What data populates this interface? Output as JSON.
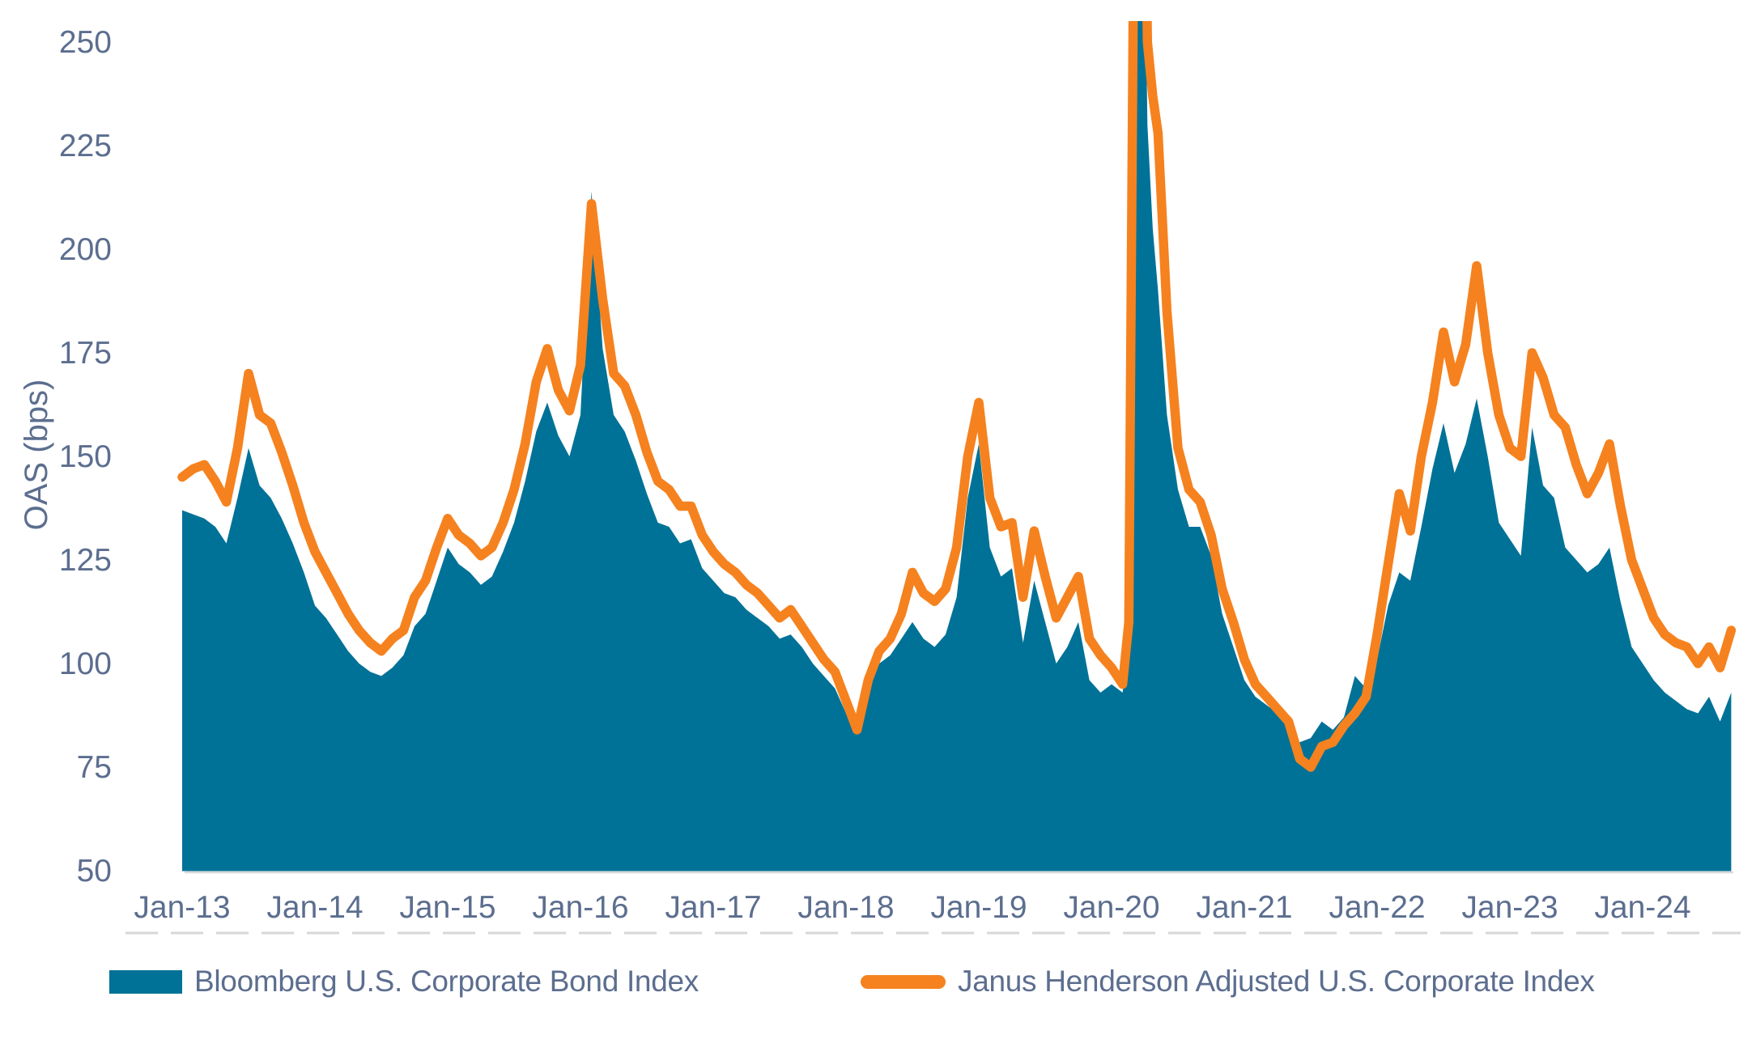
{
  "chart_data": {
    "type": "area",
    "title": "",
    "xlabel": "",
    "ylabel": "OAS (bps)",
    "ylim": [
      50,
      250
    ],
    "y_ticks": [
      250,
      225,
      200,
      175,
      150,
      125,
      100,
      75,
      50
    ],
    "x_tick_years": [
      2013,
      2014,
      2015,
      2016,
      2017,
      2018,
      2019,
      2020,
      2021,
      2022,
      2023,
      2024
    ],
    "x_tick_labels": [
      "Jan-13",
      "Jan-14",
      "Jan-15",
      "Jan-16",
      "Jan-17",
      "Jan-18",
      "Jan-19",
      "Jan-20",
      "Jan-21",
      "Jan-22",
      "Jan-23",
      "Jan-24"
    ],
    "grid": false,
    "legend_position": "bottom",
    "clip_note": "Mar-2020 COVID spike exceeds the 250 bps axis maximum and is clipped at the plot top",
    "x": [
      2013.0,
      2013.083,
      2013.167,
      2013.25,
      2013.333,
      2013.417,
      2013.5,
      2013.583,
      2013.667,
      2013.75,
      2013.833,
      2013.917,
      2014.0,
      2014.083,
      2014.167,
      2014.25,
      2014.333,
      2014.417,
      2014.5,
      2014.583,
      2014.667,
      2014.75,
      2014.833,
      2014.917,
      2015.0,
      2015.083,
      2015.167,
      2015.25,
      2015.333,
      2015.417,
      2015.5,
      2015.583,
      2015.667,
      2015.75,
      2015.833,
      2015.917,
      2016.0,
      2016.083,
      2016.167,
      2016.25,
      2016.333,
      2016.417,
      2016.5,
      2016.583,
      2016.667,
      2016.75,
      2016.833,
      2016.917,
      2017.0,
      2017.083,
      2017.167,
      2017.25,
      2017.333,
      2017.417,
      2017.5,
      2017.583,
      2017.667,
      2017.75,
      2017.833,
      2017.917,
      2018.0,
      2018.083,
      2018.167,
      2018.25,
      2018.333,
      2018.417,
      2018.5,
      2018.583,
      2018.667,
      2018.75,
      2018.833,
      2018.917,
      2019.0,
      2019.083,
      2019.167,
      2019.25,
      2019.333,
      2019.417,
      2019.5,
      2019.583,
      2019.667,
      2019.75,
      2019.833,
      2019.917,
      2020.0,
      2020.083,
      2020.13,
      2020.17,
      2020.21,
      2020.24,
      2020.27,
      2020.31,
      2020.35,
      2020.417,
      2020.5,
      2020.583,
      2020.667,
      2020.75,
      2020.833,
      2020.917,
      2021.0,
      2021.083,
      2021.167,
      2021.25,
      2021.333,
      2021.417,
      2021.5,
      2021.583,
      2021.667,
      2021.75,
      2021.833,
      2021.917,
      2022.0,
      2022.083,
      2022.167,
      2022.25,
      2022.333,
      2022.417,
      2022.5,
      2022.583,
      2022.667,
      2022.75,
      2022.833,
      2022.917,
      2023.0,
      2023.083,
      2023.167,
      2023.25,
      2023.333,
      2023.417,
      2023.5,
      2023.583,
      2023.667,
      2023.75,
      2023.833,
      2023.917,
      2024.0,
      2024.083,
      2024.167,
      2024.25,
      2024.333,
      2024.417,
      2024.5,
      2024.583,
      2024.667
    ],
    "series": [
      {
        "name": "Bloomberg U.S. Corporate Bond Index",
        "style": "area",
        "color": "#007297",
        "values": [
          137,
          136,
          135,
          133,
          129,
          140,
          152,
          143,
          140,
          135,
          129,
          122,
          114,
          111,
          107,
          103,
          100,
          98,
          97,
          99,
          102,
          109,
          112,
          120,
          128,
          124,
          122,
          119,
          121,
          127,
          134,
          144,
          156,
          163,
          155,
          150,
          160,
          214,
          176,
          160,
          156,
          149,
          141,
          134,
          133,
          129,
          130,
          123,
          120,
          117,
          116,
          113,
          111,
          109,
          106,
          107,
          104,
          100,
          97,
          94,
          88,
          86,
          95,
          100,
          102,
          106,
          110,
          106,
          104,
          107,
          116,
          140,
          153,
          128,
          121,
          123,
          105,
          120,
          110,
          100,
          104,
          110,
          96,
          93,
          95,
          93,
          105,
          280,
          340,
          300,
          230,
          205,
          190,
          160,
          142,
          133,
          133,
          126,
          112,
          104,
          96,
          92,
          90,
          88,
          85,
          81,
          82,
          86,
          84,
          87,
          97,
          94,
          101,
          114,
          122,
          120,
          133,
          147,
          158,
          146,
          153,
          164,
          150,
          134,
          130,
          126,
          157,
          143,
          140,
          128,
          125,
          122,
          124,
          128,
          115,
          104,
          100,
          96,
          93,
          91,
          89,
          88,
          92,
          86,
          93
        ]
      },
      {
        "name": "Janus Henderson Adjusted U.S. Corporate Index",
        "style": "line",
        "color": "#F5821F",
        "line_width": 11.5,
        "values": [
          145,
          147,
          148,
          144,
          139,
          152,
          170,
          160,
          158,
          151,
          143,
          134,
          127,
          122,
          117,
          112,
          108,
          105,
          103,
          106,
          108,
          116,
          120,
          128,
          135,
          131,
          129,
          126,
          128,
          134,
          142,
          153,
          168,
          176,
          166,
          161,
          172,
          211,
          188,
          170,
          167,
          160,
          151,
          144,
          142,
          138,
          138,
          131,
          127,
          124,
          122,
          119,
          117,
          114,
          111,
          113,
          109,
          105,
          101,
          98,
          91,
          84,
          96,
          103,
          106,
          112,
          122,
          117,
          115,
          118,
          128,
          150,
          163,
          140,
          133,
          134,
          116,
          132,
          121,
          111,
          116,
          121,
          106,
          102,
          99,
          95,
          110,
          290,
          350,
          320,
          250,
          237,
          228,
          185,
          152,
          142,
          139,
          131,
          118,
          110,
          101,
          95,
          92,
          89,
          86,
          77,
          75,
          80,
          81,
          85,
          88,
          92,
          107,
          124,
          141,
          132,
          150,
          163,
          180,
          168,
          177,
          196,
          175,
          160,
          152,
          150,
          175,
          169,
          160,
          157,
          148,
          141,
          146,
          153,
          138,
          125,
          118,
          111,
          107,
          105,
          104,
          100,
          104,
          99,
          108
        ]
      }
    ]
  },
  "axis_style": {
    "tick_text_color": "#5C6E8F",
    "axis_line_color": "#D8D8D8"
  },
  "legend": {
    "items": [
      {
        "label": "Bloomberg U.S. Corporate Bond Index",
        "swatch": "filled-rectangle",
        "color": "#007297"
      },
      {
        "label": "Janus Henderson Adjusted U.S. Corporate Index",
        "swatch": "rounded-line",
        "color": "#F5821F"
      }
    ]
  }
}
